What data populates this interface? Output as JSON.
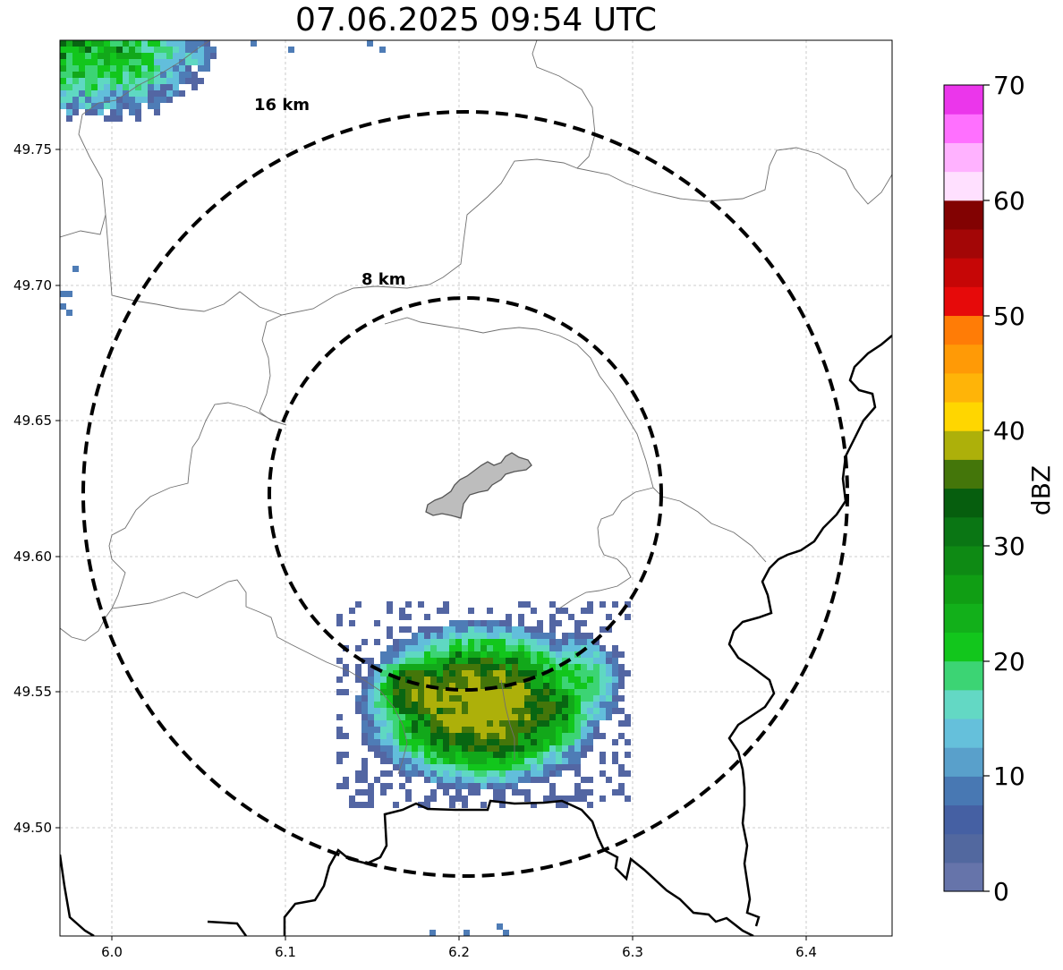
{
  "title": "07.06.2025 09:54 UTC",
  "colors": {
    "ring": "#000000",
    "border_thin": "#707070",
    "border_thick": "#000000",
    "lake": "#bdbdbd",
    "grid": "#bfbfbf"
  },
  "axes": {
    "x_ticks": [
      "6.0",
      "6.1",
      "6.2",
      "6.3",
      "6.4"
    ],
    "y_ticks": [
      "49.75",
      "49.70",
      "49.65",
      "49.60",
      "49.55",
      "49.50"
    ]
  },
  "rings": [
    {
      "label": "16 km",
      "radius_km": 16
    },
    {
      "label": "8 km",
      "radius_km": 8
    }
  ],
  "colorbar": {
    "label": "dBZ",
    "ticks": [
      "0",
      "10",
      "20",
      "30",
      "40",
      "50",
      "60",
      "70"
    ],
    "colors": [
      "#6674aa",
      "#52689f",
      "#4560a3",
      "#4878b3",
      "#59a0cb",
      "#65c0db",
      "#63d8c4",
      "#3cd474",
      "#12c61c",
      "#12b01a",
      "#109e14",
      "#0e8a14",
      "#0a7614",
      "#065e0e",
      "#44760a",
      "#adb00a",
      "#ffd600",
      "#ffb408",
      "#ff9a06",
      "#ff7c06",
      "#e60a0a",
      "#c60606",
      "#a30606",
      "#820202",
      "#ffe0ff",
      "#ffb2ff",
      "#ff70ff",
      "#eb36eb"
    ]
  },
  "radar_scale": [
    {
      "level": "dBZ 0",
      "color": "#5366a3"
    },
    {
      "level": "dBZ 10",
      "color": "#4e7cb6"
    },
    {
      "level": "dBZ 15",
      "color": "#62bedb"
    },
    {
      "level": "dBZ 18",
      "color": "#5fd8c2"
    },
    {
      "level": "dBZ 20",
      "color": "#3cd474"
    },
    {
      "level": "dBZ 22",
      "color": "#12c61c"
    },
    {
      "level": "dBZ 26",
      "color": "#12a81a"
    },
    {
      "level": "dBZ 32",
      "color": "#086612"
    },
    {
      "level": "dBZ 36",
      "color": "#44760a"
    },
    {
      "level": "dBZ 40",
      "color": "#adb00a"
    }
  ]
}
